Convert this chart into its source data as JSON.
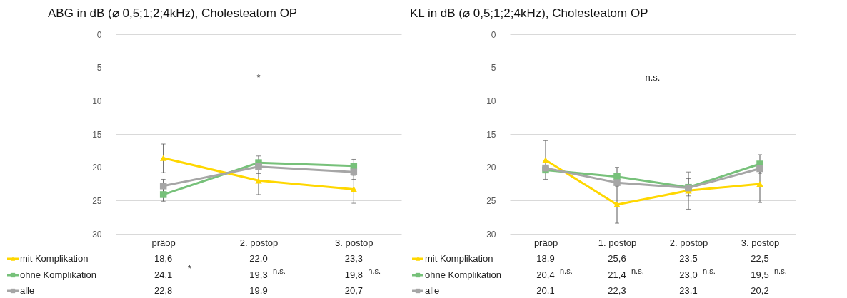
{
  "chart_data": [
    {
      "type": "line",
      "title": "ABG in dB (⌀ 0,5;1;2;4kHz),  Cholesteatom  OP",
      "categories": [
        "präop",
        "2. postop",
        "3. postop"
      ],
      "ylim": [
        30,
        0
      ],
      "yticks": [
        0,
        5,
        10,
        15,
        20,
        25,
        30
      ],
      "grid": "y",
      "legend": "bottom",
      "series": [
        {
          "name": "mit Komplikation",
          "color": "#ffd700",
          "marker": "triangle",
          "values": [
            18.6,
            22.0,
            23.3
          ],
          "value_labels": [
            "18,6",
            "22,0",
            "23,3"
          ],
          "errors": [
            [
              16.5,
              20.8
            ],
            [
              20.9,
              24.1
            ],
            [
              21.2,
              25.4
            ]
          ]
        },
        {
          "name": "ohne Komplikation",
          "color": "#77c17a",
          "marker": "square",
          "values": [
            24.1,
            19.3,
            19.8
          ],
          "value_labels": [
            "24,1",
            "19,3",
            "19,8"
          ],
          "errors": [
            [
              23.1,
              25.1
            ],
            [
              18.3,
              20.3
            ],
            [
              18.8,
              19.8
            ]
          ]
        },
        {
          "name": "alle",
          "color": "#a6a6a6",
          "marker": "square",
          "values": [
            22.8,
            19.9,
            20.7
          ],
          "value_labels": [
            "22,8",
            "19,9",
            "20,7"
          ],
          "errors": [
            [
              21.8,
              23.8
            ],
            [
              18.9,
              20.9
            ],
            [
              19.6,
              21.8
            ]
          ]
        }
      ],
      "annotations": [
        "*",
        "*",
        "n.s.",
        "n.s."
      ]
    },
    {
      "type": "line",
      "title": "KL in dB (⌀ 0,5;1;2;4kHz),  Cholesteatom  OP",
      "categories": [
        "präop",
        "1. postop",
        "2. postop",
        "3. postop"
      ],
      "ylim": [
        30,
        0
      ],
      "yticks": [
        0,
        5,
        10,
        15,
        20,
        25,
        30
      ],
      "grid": "y",
      "legend": "bottom",
      "series": [
        {
          "name": "mit Komplikation",
          "color": "#ffd700",
          "marker": "triangle",
          "values": [
            18.9,
            25.6,
            23.5,
            22.5
          ],
          "value_labels": [
            "18,9",
            "25,6",
            "23,5",
            "22,5"
          ],
          "errors": [
            [
              16.0,
              21.8
            ],
            [
              22.8,
              28.4
            ],
            [
              20.7,
              26.3
            ],
            [
              19.7,
              25.3
            ]
          ]
        },
        {
          "name": "ohne Komplikation",
          "color": "#77c17a",
          "marker": "square",
          "values": [
            20.4,
            21.4,
            23.0,
            19.5
          ],
          "value_labels": [
            "20,4",
            "21,4",
            "23,0",
            "19,5"
          ],
          "errors": [
            null,
            [
              20.0,
              22.8
            ],
            [
              21.7,
              24.3
            ],
            [
              18.1,
              20.9
            ]
          ]
        },
        {
          "name": "alle",
          "color": "#a6a6a6",
          "marker": "square",
          "values": [
            20.1,
            22.3,
            23.1,
            20.2
          ],
          "value_labels": [
            "20,1",
            "22,3",
            "23,1",
            "20,2"
          ],
          "errors": [
            null,
            null,
            null,
            null
          ]
        }
      ],
      "annotations": [
        "n.s.",
        "n.s.",
        "n.s.",
        "n.s.",
        "n.s."
      ]
    }
  ]
}
